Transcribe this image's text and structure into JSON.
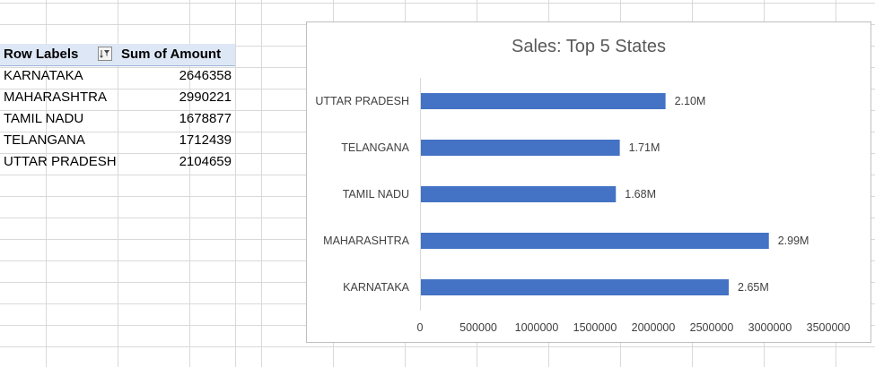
{
  "pivot": {
    "header_row_labels": "Row Labels",
    "header_sum": "Sum of Amount",
    "rows": [
      {
        "label": "KARNATAKA",
        "amount": "2646358"
      },
      {
        "label": "MAHARASHTRA",
        "amount": "2990221"
      },
      {
        "label": "TAMIL NADU",
        "amount": "1678877"
      },
      {
        "label": "TELANGANA",
        "amount": "1712439"
      },
      {
        "label": "UTTAR PRADESH",
        "amount": "2104659"
      }
    ]
  },
  "chart_data": {
    "type": "bar",
    "orientation": "horizontal",
    "title": "Sales: Top 5 States",
    "categories": [
      "KARNATAKA",
      "MAHARASHTRA",
      "TAMIL NADU",
      "TELANGANA",
      "UTTAR PRADESH"
    ],
    "values": [
      2646358,
      2990221,
      1678877,
      1712439,
      2104659
    ],
    "data_labels": [
      "2.65M",
      "2.99M",
      "1.68M",
      "1.71M",
      "2.10M"
    ],
    "xlim": [
      0,
      3500000
    ],
    "x_ticks": [
      "0",
      "500000",
      "1000000",
      "1500000",
      "2000000",
      "2500000",
      "3000000",
      "3500000"
    ],
    "bar_color": "#4472c4",
    "xlabel": "",
    "ylabel": "",
    "grid": false,
    "legend": "none"
  }
}
